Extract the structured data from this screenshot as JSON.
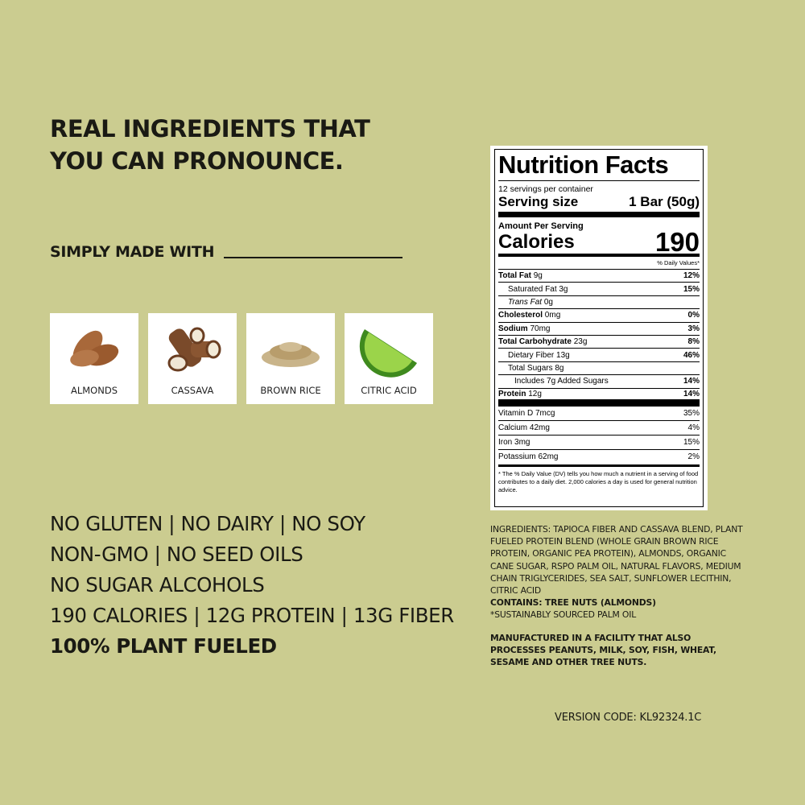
{
  "headline": [
    "REAL INGREDIENTS THAT",
    "YOU CAN PRONOUNCE."
  ],
  "simply_made_with": "SIMPLY MADE WITH",
  "ingredients_cards": [
    {
      "label": "ALMONDS",
      "icon": "almond-icon"
    },
    {
      "label": "CASSAVA",
      "icon": "cassava-icon"
    },
    {
      "label": "BROWN RICE",
      "icon": "rice-icon"
    },
    {
      "label": "CITRIC ACID",
      "icon": "lime-icon"
    }
  ],
  "claims": [
    "NO GLUTEN | NO DAIRY | NO SOY",
    "NON-GMO | NO SEED OILS",
    "NO SUGAR ALCOHOLS",
    "190 CALORIES | 12G PROTEIN | 13G FIBER",
    "100% PLANT FUELED"
  ],
  "nutrition": {
    "title": "Nutrition Facts",
    "servings": "12 servings per container",
    "serving_size_label": "Serving size",
    "serving_size": "1 Bar (50g)",
    "amount_per_serving": "Amount Per Serving",
    "calories_label": "Calories",
    "calories": "190",
    "dv_header": "% Daily Values*",
    "rows": [
      {
        "name": "Total Fat",
        "amount": "9g",
        "dv": "12%"
      },
      {
        "name": "Saturated Fat",
        "amount": "3g",
        "dv": "15%"
      },
      {
        "name": "Trans Fat",
        "amount": "0g",
        "dv": ""
      },
      {
        "name": "Cholesterol",
        "amount": "0mg",
        "dv": "0%"
      },
      {
        "name": "Sodium",
        "amount": "70mg",
        "dv": "3%"
      },
      {
        "name": "Total Carbohydrate",
        "amount": "23g",
        "dv": "8%"
      },
      {
        "name": "Dietary Fiber",
        "amount": "13g",
        "dv": "46%"
      },
      {
        "name": "Total Sugars",
        "amount": "8g",
        "dv": ""
      },
      {
        "name": "Includes 7g Added Sugars",
        "amount": "",
        "dv": "14%"
      },
      {
        "name": "Protein",
        "amount": "12g",
        "dv": "14%"
      }
    ],
    "vitamins": [
      {
        "name": "Vitamin D 7mcg",
        "dv": "35%"
      },
      {
        "name": "Calcium 42mg",
        "dv": "4%"
      },
      {
        "name": "Iron 3mg",
        "dv": "15%"
      },
      {
        "name": "Potassium 62mg",
        "dv": "2%"
      }
    ],
    "footnote": "* The % Daily Value (DV) tells you how much a nutrient in a serving of food contributes to a daily diet. 2,000 calories a day is used for general nutrition advice."
  },
  "ingredients_text": "INGREDIENTS: TAPIOCA FIBER AND CASSAVA BLEND, PLANT FUELED PROTEIN BLEND (WHOLE GRAIN BROWN RICE PROTEIN, ORGANIC PEA PROTEIN), ALMONDS, ORGANIC CANE SUGAR, RSPO PALM OIL, NATURAL FLAVORS, MEDIUM CHAIN TRIGLYCERIDES, SEA SALT, SUNFLOWER LECITHIN, CITRIC ACID",
  "contains": "CONTAINS: TREE NUTS (ALMONDS)",
  "palm_note": "*SUSTAINABLY SOURCED PALM  OIL",
  "facility": "MANUFACTURED IN A FACILITY THAT ALSO PROCESSES PEANUTS, MILK, SOY, FISH, WHEAT, SESAME AND OTHER TREE NUTS.",
  "version_code": "VERSION CODE: KL92324.1C",
  "colors": {
    "background": "#cbcc90",
    "text": "#1a1a14"
  }
}
